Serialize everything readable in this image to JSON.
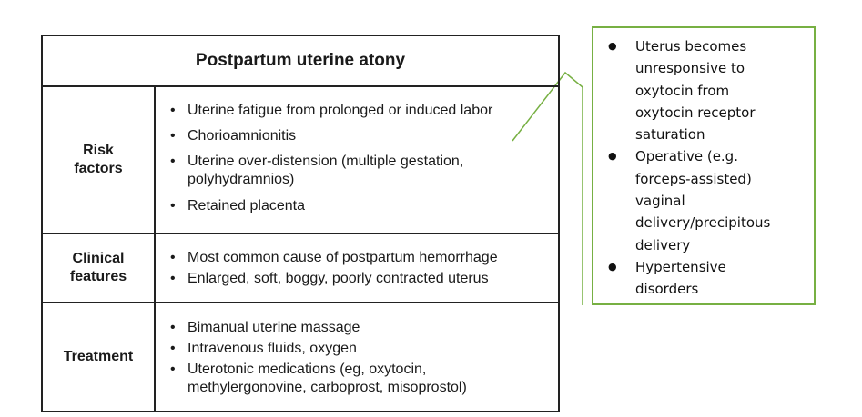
{
  "table": {
    "title": "Postpartum uterine atony",
    "rows": [
      {
        "header": "Risk\nfactors",
        "items": [
          "Uterine fatigue from prolonged or induced labor",
          "Chorioamnionitis",
          "Uterine over-distension (multiple gestation, polyhydramnios)",
          "Retained placenta"
        ]
      },
      {
        "header": "Clinical\nfeatures",
        "items": [
          "Most common cause of postpartum hemorrhage",
          "Enlarged, soft, boggy, poorly contracted uterus"
        ]
      },
      {
        "header": "Treatment",
        "items": [
          "Bimanual uterine massage",
          "Intravenous fluids, oxygen",
          "Uterotonic medications (eg, oxytocin, methylergonovine, carboprost, misoprostol)"
        ]
      }
    ]
  },
  "comment": {
    "items": [
      "Uterus becomes unresponsive to oxytocin from oxytocin receptor saturation",
      "Operative (e.g. forceps-assisted) vaginal delivery/precipitous delivery",
      "Hypertensive disorders"
    ],
    "border_color": "#77b043"
  }
}
